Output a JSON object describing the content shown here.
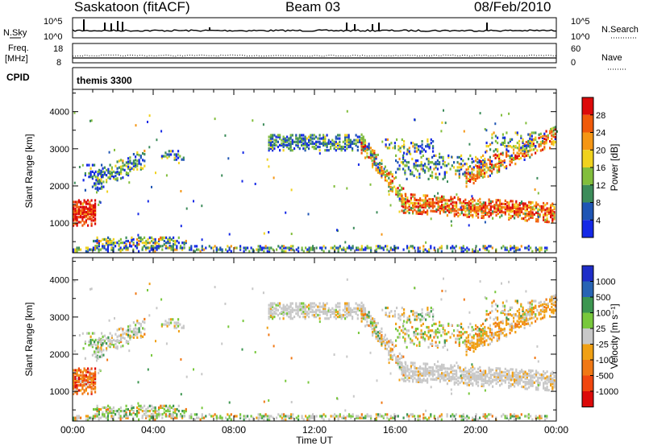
{
  "header": {
    "station": "Saskatoon (fitACF)",
    "beam": "Beam 03",
    "date": "08/Feb/2010"
  },
  "strips": {
    "nsky_label": "N.Sky",
    "nsearch_label": "N.Search",
    "left_ticks": [
      "10^5",
      "10^0"
    ],
    "right_ticks": [
      "10^5",
      "10^0"
    ],
    "freq_label_1": "Freq.",
    "freq_label_2": "[MHz]",
    "freq_ticks": [
      "18",
      "8"
    ],
    "nave_label": "Nave",
    "nave_ticks": [
      "60",
      "0"
    ],
    "cpid_label": "CPID",
    "cpid_value": "themis 3300"
  },
  "chart_data": [
    {
      "type": "heatmap",
      "title": "",
      "xlabel": "Time UT",
      "ylabel": "Slant Range [km]",
      "x_ticks": [
        "00:00",
        "04:00",
        "08:00",
        "12:00",
        "16:00",
        "20:00",
        "00:00"
      ],
      "y_ticks": [
        1000,
        2000,
        3000,
        4000
      ],
      "ylim": [
        200,
        4600
      ],
      "colorbar": {
        "label": "Power [dB]",
        "ticks": [
          "4",
          "8",
          "12",
          "16",
          "20",
          "24",
          "28"
        ],
        "colors": [
          "#1428e6",
          "#1f55b4",
          "#3c8c5a",
          "#82be3c",
          "#f0d21e",
          "#f59614",
          "#f05a0a",
          "#dc0a0a"
        ]
      }
    },
    {
      "type": "heatmap",
      "title": "",
      "xlabel": "Time UT",
      "ylabel": "Slant Range [km]",
      "x_ticks": [
        "00:00",
        "04:00",
        "08:00",
        "12:00",
        "16:00",
        "20:00",
        "00:00"
      ],
      "y_ticks": [
        1000,
        2000,
        3000,
        4000
      ],
      "ylim": [
        200,
        4600
      ],
      "colorbar": {
        "label": "Velocity [m s⁻¹]",
        "ticks": [
          "1000",
          "500",
          "100",
          "25",
          "-25",
          "-100",
          "-500",
          "-1000"
        ],
        "colors": [
          "#1e2dc8",
          "#2864b4",
          "#3c9650",
          "#78c83c",
          "#c8c8c8",
          "#f0a014",
          "#f07814",
          "#f0460f",
          "#dc0a0a"
        ]
      }
    }
  ]
}
